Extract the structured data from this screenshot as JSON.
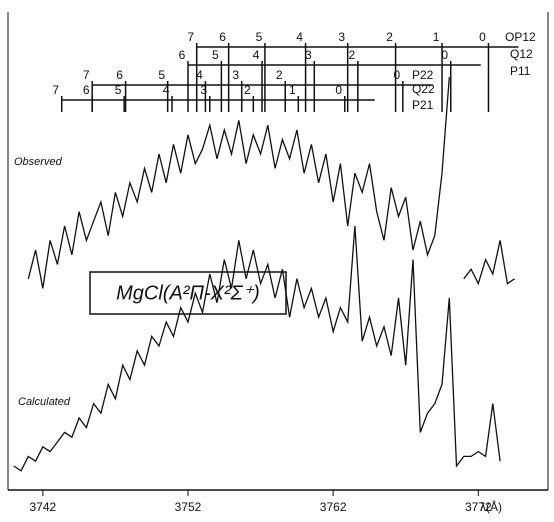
{
  "chart_data": {
    "type": "line",
    "title": "MgCl(A²Π-X²Σ⁺)",
    "x_label": "λ(Å)",
    "xlim": [
      3739.6,
      3776.8
    ],
    "xticks": [
      3742,
      3752,
      3762,
      3772
    ],
    "ylim": [
      0,
      100
    ],
    "x": [
      3740,
      3740.5,
      3741,
      3741.5,
      3742,
      3742.5,
      3743,
      3743.5,
      3744,
      3744.5,
      3745,
      3745.5,
      3746,
      3746.5,
      3747,
      3747.5,
      3748,
      3748.5,
      3749,
      3749.5,
      3750,
      3750.5,
      3751,
      3751.5,
      3752,
      3752.5,
      3753,
      3753.5,
      3754,
      3754.5,
      3755,
      3755.5,
      3756,
      3756.5,
      3757,
      3757.5,
      3758,
      3758.5,
      3759,
      3759.5,
      3760,
      3760.5,
      3761,
      3761.5,
      3762,
      3762.5,
      3763,
      3763.5,
      3764,
      3764.5,
      3765,
      3765.5,
      3766,
      3766.5,
      3767,
      3767.5,
      3768,
      3768.5,
      3769,
      3769.5,
      3770,
      3770.5,
      3771,
      3771.5,
      3772,
      3772.5,
      3773,
      3773.5,
      3774,
      3774.5
    ],
    "series": [
      {
        "name": "Observed",
        "color": "#111111",
        "values": [
          null,
          null,
          44,
          50,
          42,
          52,
          47,
          55,
          49,
          58,
          52,
          56,
          60,
          53,
          62,
          57,
          64,
          60,
          67,
          62,
          70,
          64,
          72,
          66,
          74,
          68,
          71,
          76,
          69,
          75,
          70,
          77,
          68,
          74,
          70,
          76,
          67,
          73,
          69,
          75,
          66,
          72,
          64,
          70,
          60,
          68,
          55,
          66,
          62,
          68,
          58,
          52,
          63,
          57,
          61,
          50,
          56,
          49,
          53,
          66,
          86,
          null,
          44,
          46,
          43,
          48,
          45,
          52,
          43,
          44
        ]
      },
      {
        "name": "Calculated",
        "color": "#111111",
        "values": [
          5,
          4,
          7,
          6,
          9,
          8,
          10,
          12,
          11,
          15,
          13,
          18,
          16,
          22,
          19,
          26,
          23,
          29,
          26,
          32,
          30,
          35,
          32,
          38,
          35,
          41,
          37,
          45,
          39,
          48,
          42,
          52,
          44,
          50,
          43,
          47,
          40,
          46,
          36,
          44,
          38,
          42,
          36,
          40,
          33,
          38,
          35,
          55,
          31,
          36,
          30,
          34,
          28,
          40,
          26,
          48,
          12,
          16,
          18,
          22,
          40,
          5,
          7,
          7,
          8,
          7,
          18,
          6,
          null,
          null
        ]
      }
    ],
    "branches": [
      {
        "names": [
          "OP12"
        ],
        "lines": [
          {
            "J": 7,
            "x": 3752.6
          },
          {
            "J": 6,
            "x": 3754.8
          },
          {
            "J": 5,
            "x": 3757.3
          },
          {
            "J": 4,
            "x": 3760.1
          },
          {
            "J": 3,
            "x": 3763.0
          },
          {
            "J": 2,
            "x": 3766.3
          },
          {
            "J": 1,
            "x": 3769.5
          },
          {
            "J": 0,
            "x": 3772.7
          }
        ]
      },
      {
        "names": [
          "Q12",
          "P11"
        ],
        "lines": [
          {
            "J": 6,
            "x": 3752.0
          },
          {
            "J": 5,
            "x": 3754.3
          },
          {
            "J": 4,
            "x": 3757.1
          },
          {
            "J": 3,
            "x": 3760.7
          },
          {
            "J": 2,
            "x": 3763.7
          },
          {
            "J": 0,
            "x": 3770.1
          }
        ]
      },
      {
        "names": [
          "P22"
        ],
        "lines": [
          {
            "J": 7,
            "x": 3745.4
          },
          {
            "J": 6,
            "x": 3747.7
          },
          {
            "J": 5,
            "x": 3750.6
          },
          {
            "J": 4,
            "x": 3753.2
          },
          {
            "J": 3,
            "x": 3755.7
          },
          {
            "J": 2,
            "x": 3758.7
          },
          {
            "J": 0,
            "x": 3766.8
          }
        ]
      },
      {
        "names": [
          "Q22",
          "P21"
        ],
        "lines": [
          {
            "J": 7,
            "x": 3743.3
          },
          {
            "J": 6,
            "x": 3745.4
          },
          {
            "J": 5,
            "x": 3747.6
          },
          {
            "J": 4,
            "x": 3750.9
          },
          {
            "J": 3,
            "x": 3753.5
          },
          {
            "J": 2,
            "x": 3756.5
          },
          {
            "J": 1,
            "x": 3759.6
          },
          {
            "J": 0,
            "x": 3762.8
          }
        ]
      }
    ]
  }
}
